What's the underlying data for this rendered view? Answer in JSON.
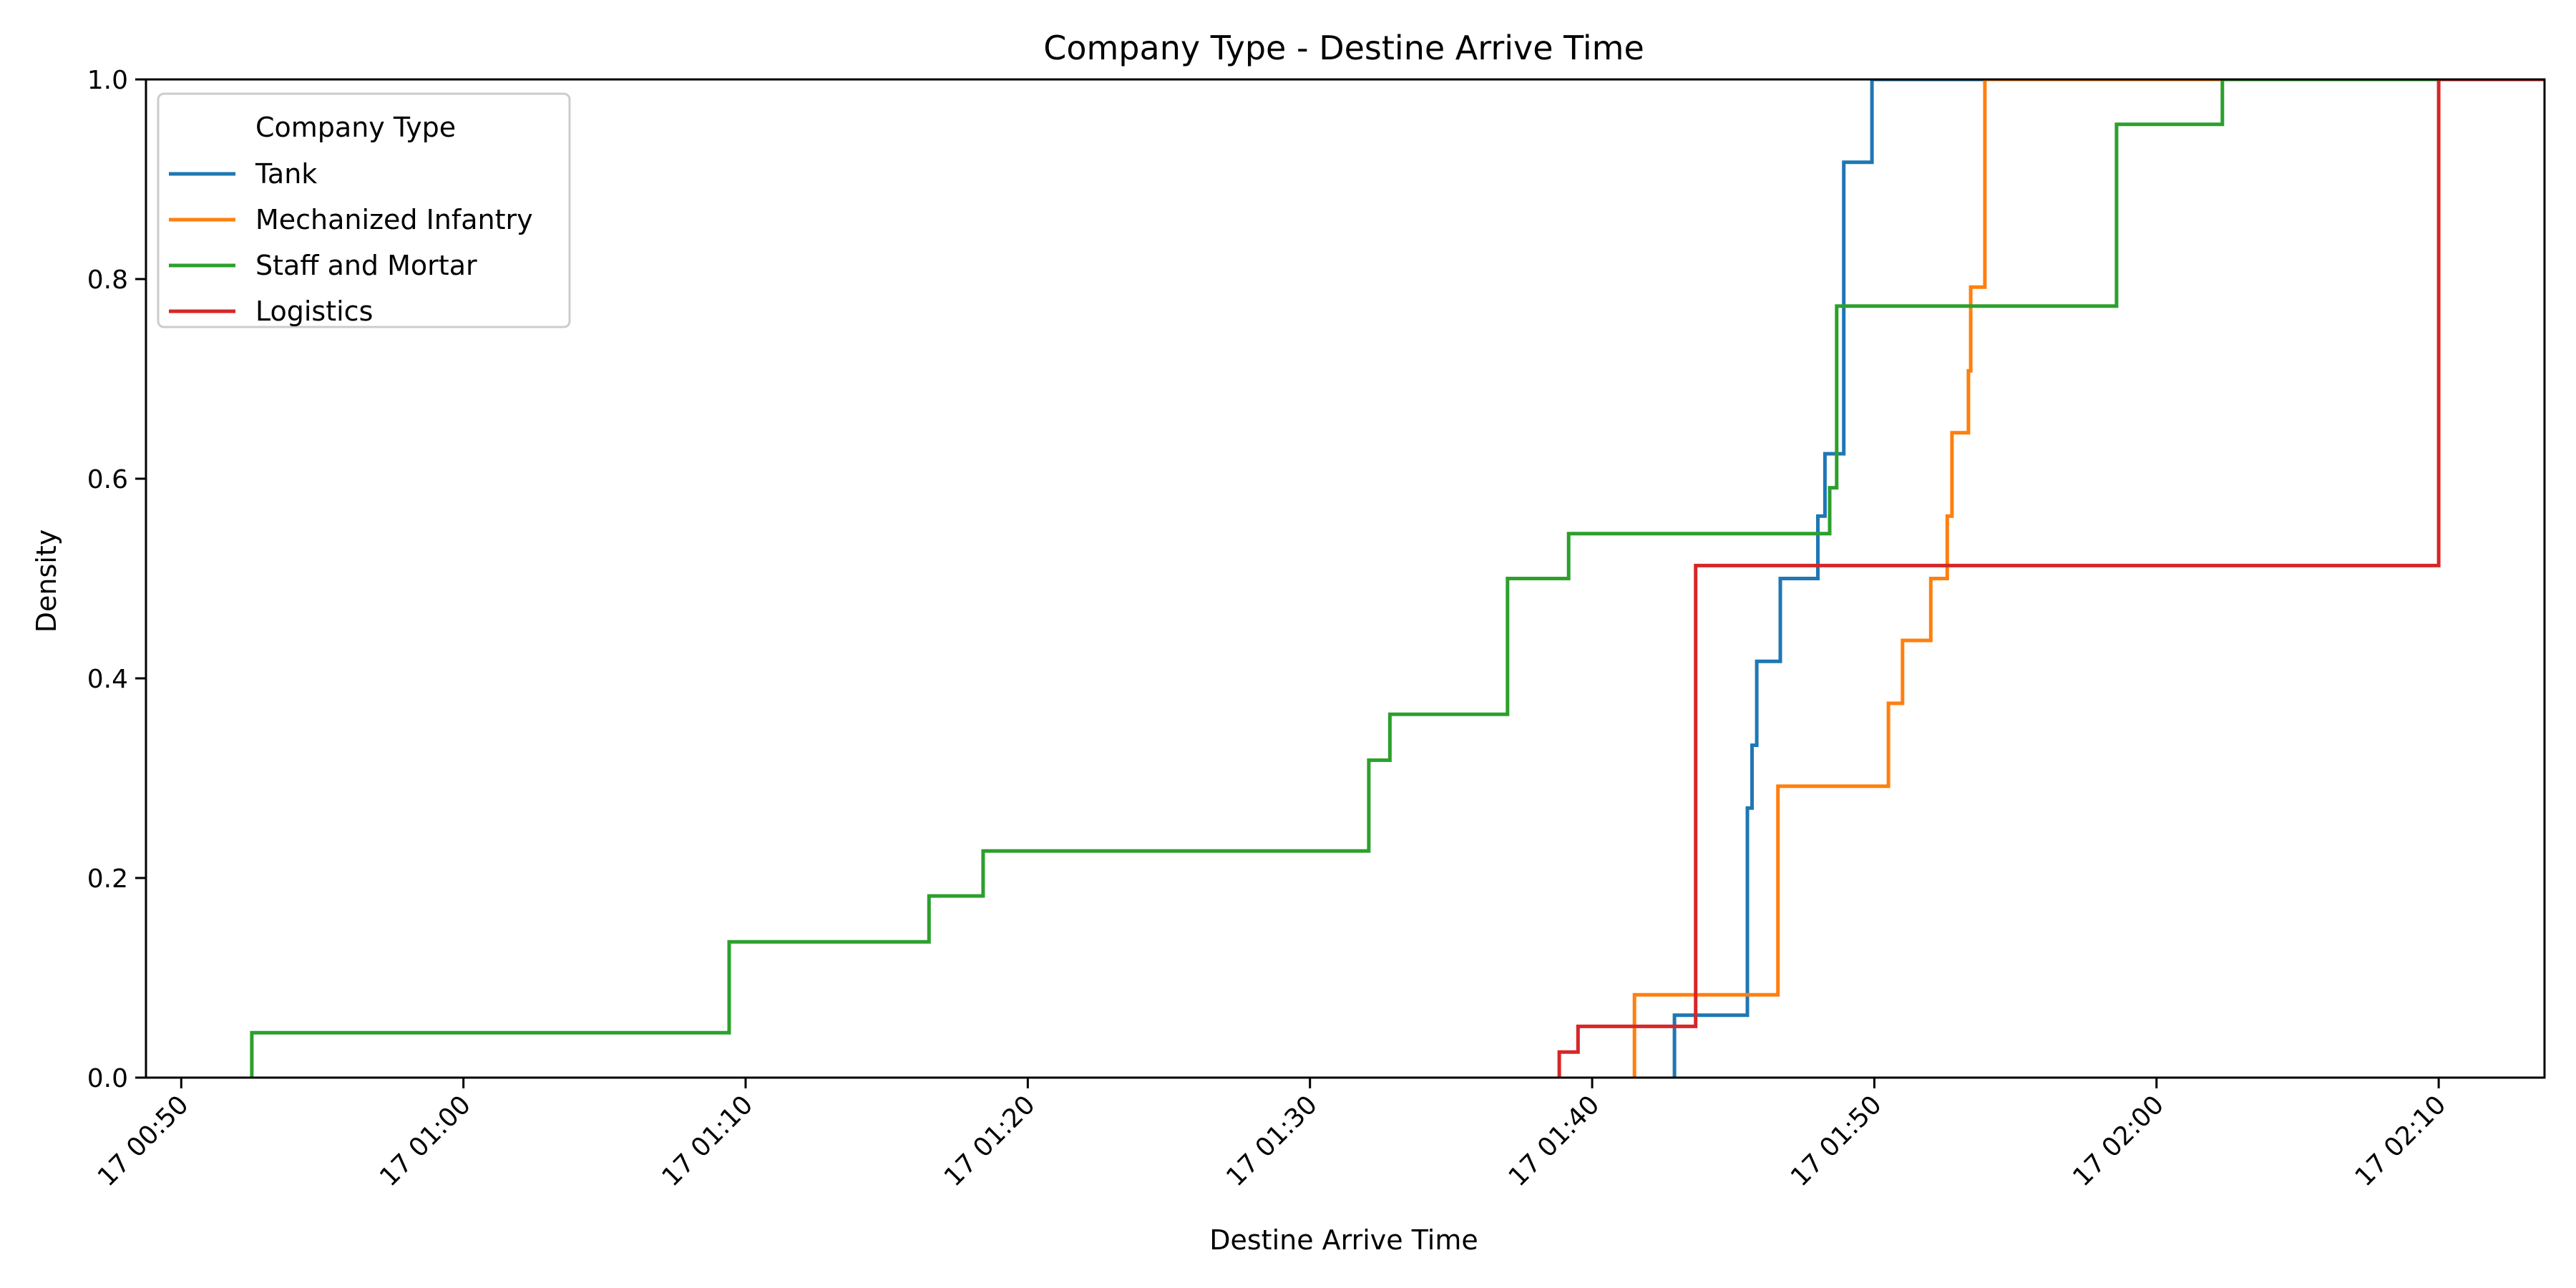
{
  "chart_data": {
    "type": "line",
    "drawstyle": "steps-post",
    "title": "Company Type - Destine Arrive Time",
    "xlabel": "Destine Arrive Time",
    "ylabel": "Density",
    "xlim": [
      "17 00:48:45",
      "17 02:13:45"
    ],
    "ylim": [
      0,
      1
    ],
    "x_ticks": [
      "17 00:50",
      "17 01:00",
      "17 01:10",
      "17 01:20",
      "17 01:30",
      "17 01:40",
      "17 01:50",
      "17 02:00",
      "17 02:10"
    ],
    "y_ticks": [
      "0.0",
      "0.2",
      "0.4",
      "0.6",
      "0.8",
      "1.0"
    ],
    "grid": false,
    "legend": {
      "title": "Company Type",
      "position": "top-left"
    },
    "series": [
      {
        "name": "Tank",
        "color": "#1f77b4",
        "points": [
          [
            "17 01:42:55",
            0.0
          ],
          [
            "17 01:42:55",
            0.0625
          ],
          [
            "17 01:45:30",
            0.27
          ],
          [
            "17 01:45:40",
            0.333
          ],
          [
            "17 01:45:50",
            0.417
          ],
          [
            "17 01:46:40",
            0.5
          ],
          [
            "17 01:48:00",
            0.5625
          ],
          [
            "17 01:48:15",
            0.625
          ],
          [
            "17 01:48:55",
            0.917
          ],
          [
            "17 01:49:55",
            1.0
          ]
        ]
      },
      {
        "name": "Mechanized Infantry",
        "color": "#ff7f0e",
        "points": [
          [
            "17 01:41:30",
            0.0
          ],
          [
            "17 01:41:30",
            0.083
          ],
          [
            "17 01:46:35",
            0.292
          ],
          [
            "17 01:50:30",
            0.375
          ],
          [
            "17 01:51:00",
            0.438
          ],
          [
            "17 01:52:00",
            0.5
          ],
          [
            "17 01:52:35",
            0.5625
          ],
          [
            "17 01:52:45",
            0.646
          ],
          [
            "17 01:53:20",
            0.708
          ],
          [
            "17 01:53:25",
            0.792
          ],
          [
            "17 01:53:55",
            1.0
          ]
        ]
      },
      {
        "name": "Staff and Mortar",
        "color": "#2ca02c",
        "points": [
          [
            "17 00:52:30",
            0.0
          ],
          [
            "17 00:52:30",
            0.045
          ],
          [
            "17 01:09:25",
            0.136
          ],
          [
            "17 01:16:30",
            0.182
          ],
          [
            "17 01:18:25",
            0.227
          ],
          [
            "17 01:32:05",
            0.318
          ],
          [
            "17 01:32:50",
            0.364
          ],
          [
            "17 01:37:00",
            0.5
          ],
          [
            "17 01:39:10",
            0.545
          ],
          [
            "17 01:48:25",
            0.591
          ],
          [
            "17 01:48:40",
            0.773
          ],
          [
            "17 01:58:35",
            0.955
          ],
          [
            "17 02:02:20",
            1.0
          ]
        ]
      },
      {
        "name": "Logistics",
        "color": "#d62728",
        "points": [
          [
            "17 01:38:50",
            0.0
          ],
          [
            "17 01:38:50",
            0.0256
          ],
          [
            "17 01:39:30",
            0.0513
          ],
          [
            "17 01:43:40",
            0.513
          ],
          [
            "17 02:10:00",
            1.0
          ]
        ]
      }
    ]
  }
}
